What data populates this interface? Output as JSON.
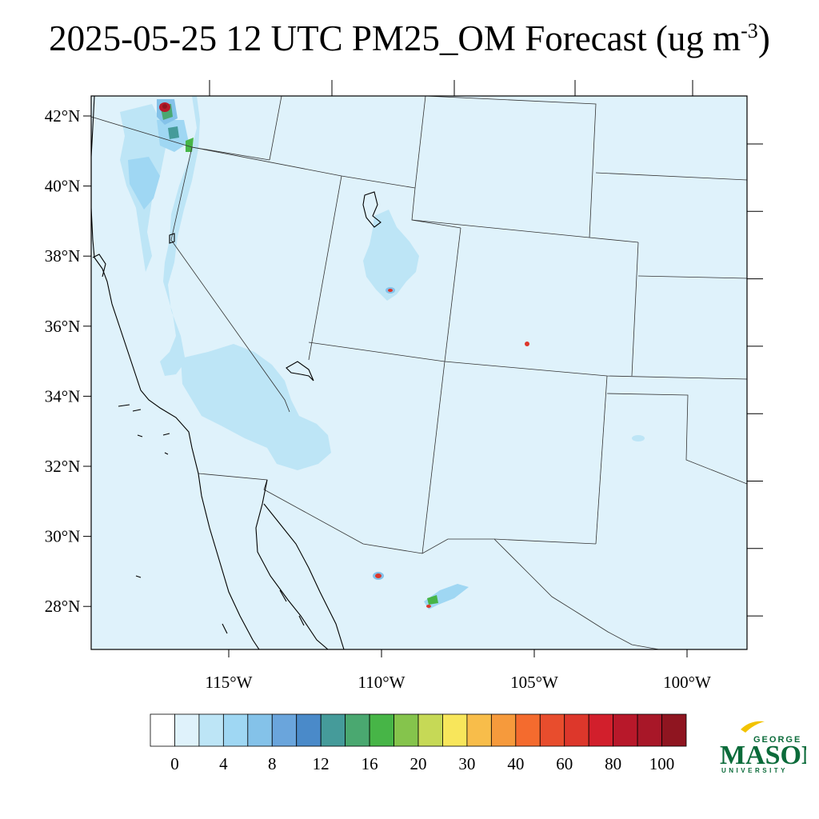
{
  "title": {
    "text": "2025-05-25 12 UTC PM25_OM Forecast (ug m",
    "superscript": "-3",
    "close": ")"
  },
  "map": {
    "background_color": "#dff2fb",
    "lat_labels": [
      "42°N",
      "40°N",
      "38°N",
      "36°N",
      "34°N",
      "32°N",
      "30°N",
      "28°N"
    ],
    "lon_labels": [
      "115°W",
      "110°W",
      "105°W",
      "100°W"
    ],
    "lat_values": [
      42,
      40,
      38,
      36,
      34,
      32,
      30,
      28
    ],
    "lon_values": [
      -115,
      -110,
      -105,
      -100
    ]
  },
  "colorbar": {
    "colors": [
      "#ffffff",
      "#dff2fb",
      "#bde5f6",
      "#9fd7f3",
      "#84c2e9",
      "#6aa5dc",
      "#4a8ac9",
      "#459b9a",
      "#4aa870",
      "#47b547",
      "#85c44c",
      "#c6d956",
      "#f8e65b",
      "#f8bd4a",
      "#f69a3c",
      "#f46b2e",
      "#e84d2d",
      "#dd372b",
      "#d21f2c",
      "#b8182a",
      "#a81728",
      "#8f1520"
    ],
    "labels": [
      "0",
      "4",
      "8",
      "12",
      "16",
      "20",
      "30",
      "40",
      "60",
      "80",
      "100"
    ]
  },
  "logo": {
    "top": "GEORGE",
    "main": "MASON",
    "bottom": "UNIVERSITY",
    "color": "#0b6b3a"
  }
}
